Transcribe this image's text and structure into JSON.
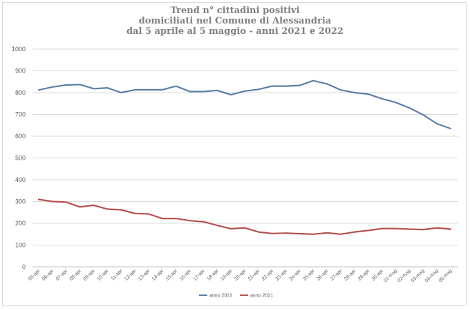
{
  "chart_data": {
    "type": "line",
    "title_lines": [
      "Trend n° cittadini positivi",
      "domiciliati nel Comune di Alessandria",
      "dal 5 aprile al 5 maggio - anni 2021 e 2022"
    ],
    "xlabel": "",
    "ylabel": "",
    "ylim": [
      0,
      1000
    ],
    "yticks": [
      0,
      100,
      200,
      300,
      400,
      500,
      600,
      700,
      800,
      900,
      1000
    ],
    "grid": true,
    "legend_position": "bottom",
    "categories": [
      "05-apr",
      "06-apr",
      "07-apr",
      "08-apr",
      "09-apr",
      "10-apr",
      "11-apr",
      "12-apr",
      "13-apr",
      "14-apr",
      "15-apr",
      "16-apr",
      "17-apr",
      "18-apr",
      "19-apr",
      "20-apr",
      "21-apr",
      "22-apr",
      "23-apr",
      "24-apr",
      "25-apr",
      "26-apr",
      "27-apr",
      "28-apr",
      "29-apr",
      "30-apr",
      "01-mag",
      "02-mag",
      "03-mag",
      "04-mag",
      "05-mag"
    ],
    "series": [
      {
        "name": "anno 2022",
        "color": "#5b7fa6",
        "values": [
          812,
          826,
          835,
          837,
          818,
          822,
          800,
          813,
          813,
          813,
          830,
          805,
          805,
          810,
          790,
          807,
          815,
          830,
          830,
          833,
          855,
          840,
          812,
          800,
          793,
          772,
          755,
          730,
          698,
          657,
          635
        ]
      },
      {
        "name": "anno 2021",
        "color": "#b5514f",
        "values": [
          310,
          300,
          297,
          275,
          283,
          265,
          262,
          245,
          243,
          222,
          222,
          212,
          207,
          190,
          175,
          179,
          160,
          153,
          155,
          152,
          150,
          156,
          150,
          160,
          167,
          176,
          176,
          173,
          171,
          179,
          173
        ]
      }
    ]
  }
}
